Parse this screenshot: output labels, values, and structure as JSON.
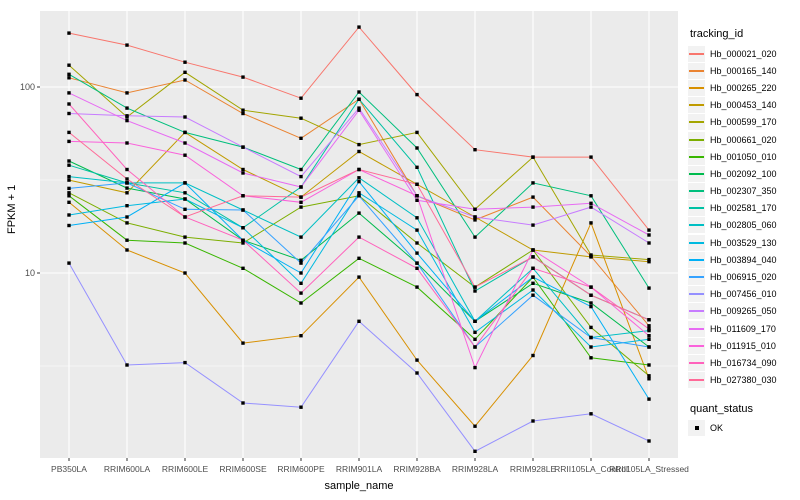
{
  "figure": {
    "y_axis_title": "FPKM + 1",
    "x_axis_title": "sample_name",
    "legend_tracking_title": "tracking_id",
    "legend_quant_title": "quant_status",
    "quant_items": [
      {
        "label": "OK"
      }
    ]
  },
  "colors": {
    "background": "#FFFFFF",
    "panel_bg": "#EBEBEB",
    "gridline": "#FFFFFF",
    "axis_text": "#4D4D4D",
    "tick_mark": "#333333",
    "point": "#000000",
    "legend_key_bg": "#F2F2F2"
  },
  "chart_data": {
    "type": "line",
    "title": "",
    "xlabel": "sample_name",
    "ylabel": "FPKM + 1",
    "y_scale": "log10",
    "ylim": [
      1,
      256
    ],
    "y_major_ticks": [
      {
        "value": 100,
        "label": "100"
      },
      {
        "value": 10,
        "label": "10"
      }
    ],
    "y_minor_gridlines": [
      31.62,
      3.162
    ],
    "grid": true,
    "legend_position": "right",
    "point_shape": "filled-black-square",
    "quant_status_all": "OK",
    "categories": [
      "PB350LA",
      "RRIM600LA",
      "RRIM600LE",
      "RRIM600SE",
      "RRIM600PE",
      "RRIM901LA",
      "RRIM928BA",
      "RRIM928LA",
      "RRIM928LE",
      "RRII105LA_Control",
      "RRII105LA_Stressed"
    ],
    "series": [
      {
        "name": "Hb_000021_020",
        "color": "#F8766D",
        "values": [
          195,
          168,
          136,
          113,
          87,
          210,
          91,
          46,
          42,
          42,
          17
        ]
      },
      {
        "name": "Hb_000165_140",
        "color": "#EA8331",
        "values": [
          112,
          93,
          109,
          72,
          53,
          86,
          26,
          19.3,
          25.6,
          12.3,
          5.2
        ]
      },
      {
        "name": "Hb_000265_220",
        "color": "#D89000",
        "values": [
          24,
          13.3,
          10,
          4.2,
          4.6,
          9.5,
          3.4,
          1.5,
          3.6,
          18.6,
          2.7
        ]
      },
      {
        "name": "Hb_000453_140",
        "color": "#C09B00",
        "values": [
          31.6,
          27,
          57,
          36,
          25.6,
          45,
          30,
          20,
          13.3,
          12.2,
          11.5
        ]
      },
      {
        "name": "Hb_000599_170",
        "color": "#A3A500",
        "values": [
          131,
          69,
          120,
          75,
          68,
          49,
          57,
          22,
          42,
          12.5,
          11.8
        ]
      },
      {
        "name": "Hb_000661_020",
        "color": "#7CAE00",
        "values": [
          27,
          18.6,
          15.6,
          14.5,
          22.6,
          26,
          14.5,
          8.4,
          13.3,
          5.1,
          2.8
        ]
      },
      {
        "name": "Hb_001050_010",
        "color": "#39B600",
        "values": [
          26,
          15,
          14.5,
          10.6,
          6.9,
          12,
          8.4,
          4.4,
          9.5,
          3.5,
          3.2
        ]
      },
      {
        "name": "Hb_002092_100",
        "color": "#00BB4E",
        "values": [
          40,
          28.6,
          25,
          15,
          11.7,
          21,
          11.3,
          5.5,
          8.8,
          6.9,
          4.0
        ]
      },
      {
        "name": "Hb_002307_350",
        "color": "#00BF7D",
        "values": [
          117,
          77,
          57,
          47.5,
          36,
          94,
          47,
          15.6,
          30.5,
          26,
          8.3
        ]
      },
      {
        "name": "Hb_002581_170",
        "color": "#00C1A3",
        "values": [
          38,
          30.5,
          27,
          17.5,
          29,
          86,
          37,
          8.0,
          12.2,
          7.6,
          5.6
        ]
      },
      {
        "name": "Hb_002805_060",
        "color": "#00BFC4",
        "values": [
          33,
          30.5,
          30.5,
          21.8,
          15.6,
          32.5,
          19.8,
          5.5,
          10.6,
          4.5,
          4.9
        ]
      },
      {
        "name": "Hb_003529_130",
        "color": "#00BAE0",
        "values": [
          20.5,
          23,
          25,
          17.5,
          8.8,
          27,
          17,
          4.8,
          8.1,
          4.0,
          4.4
        ]
      },
      {
        "name": "Hb_003894_040",
        "color": "#00B0F6",
        "values": [
          18,
          20,
          30.5,
          15,
          10,
          31,
          12.8,
          5.5,
          9.5,
          6.6,
          2.1
        ]
      },
      {
        "name": "Hb_006915_020",
        "color": "#35A2FF",
        "values": [
          28.5,
          30.5,
          22,
          21.8,
          11.3,
          26,
          11.3,
          4.0,
          7.6,
          4.5,
          4.0
        ]
      },
      {
        "name": "Hb_007456_010",
        "color": "#9590FF",
        "values": [
          11.3,
          3.2,
          3.3,
          2.0,
          1.9,
          5.5,
          2.9,
          1.1,
          1.6,
          1.75,
          1.25
        ]
      },
      {
        "name": "Hb_009265_050",
        "color": "#C77CFF",
        "values": [
          72,
          70,
          69,
          47.5,
          33,
          77,
          26,
          20,
          18.1,
          22.6,
          14.5
        ]
      },
      {
        "name": "Hb_011609_170",
        "color": "#E76BF3",
        "values": [
          93,
          66,
          50,
          34.5,
          29,
          75,
          24.6,
          22,
          22.6,
          23.7,
          16
        ]
      },
      {
        "name": "Hb_011915_010",
        "color": "#FA62DB",
        "values": [
          51,
          50,
          43,
          26,
          24,
          36,
          26,
          3.1,
          13.3,
          8.4,
          4.6
        ]
      },
      {
        "name": "Hb_016734_090",
        "color": "#FF62BC",
        "values": [
          81,
          36,
          20,
          15,
          7.8,
          15.6,
          10.6,
          4.0,
          10.6,
          8.4,
          5.0
        ]
      },
      {
        "name": "Hb_027380_030",
        "color": "#FF6A98",
        "values": [
          57,
          32,
          20,
          26,
          25.6,
          36,
          30,
          8.4,
          12.2,
          7.6,
          5.6
        ]
      }
    ]
  }
}
